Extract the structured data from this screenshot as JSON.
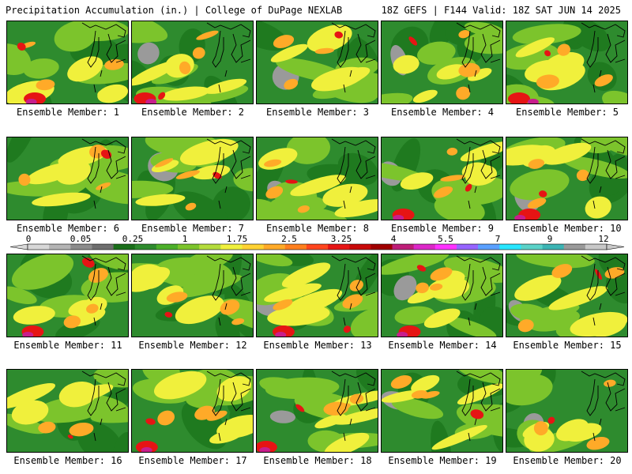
{
  "header": {
    "title": "Precipitation Accumulation (in.) | College of DuPage NEXLAB",
    "run_info": "18Z GEFS | F144 Valid: 18Z SAT JUN 14 2025"
  },
  "colorbar": {
    "labels": [
      "0",
      "0.05",
      "0.25",
      "1",
      "1.75",
      "2.5",
      "3.25",
      "4",
      "5.5",
      "7",
      "9",
      "12"
    ],
    "colors": [
      "#d8d8d8",
      "#b4b4b4",
      "#8c8c8c",
      "#6e6e6e",
      "#1a6e1a",
      "#2e8b2e",
      "#4caf2a",
      "#7cc42c",
      "#b4dc3c",
      "#f0f03c",
      "#ffd232",
      "#ffaa28",
      "#ff7f1e",
      "#ff461e",
      "#e61414",
      "#c80a0a",
      "#a00000",
      "#be1e78",
      "#dc28c8",
      "#ff32ff",
      "#9664ff",
      "#5aa0ff",
      "#28e6ff",
      "#5ad2c8",
      "#3cb4b4",
      "#9a9a9a",
      "#c8c8c8"
    ]
  },
  "palette": {
    "green_dark": "#1f7a1f",
    "green": "#2e8b2e",
    "green_light": "#7cc42c",
    "yellow": "#f0f03c",
    "orange": "#ffaa28",
    "red": "#e61414",
    "magenta": "#c81e8c",
    "cyan": "#28e6ff",
    "gray": "#9a9a9a",
    "coast": "#000000"
  },
  "members": [
    {
      "caption": "Ensemble Member: 1"
    },
    {
      "caption": "Ensemble Member: 2"
    },
    {
      "caption": "Ensemble Member: 3"
    },
    {
      "caption": "Ensemble Member: 4"
    },
    {
      "caption": "Ensemble Member: 5"
    },
    {
      "caption": "Ensemble Member: 6"
    },
    {
      "caption": "Ensemble Member: 7"
    },
    {
      "caption": "Ensemble Member: 8"
    },
    {
      "caption": "Ensemble Member: 9"
    },
    {
      "caption": "Ensemble Member: 10"
    },
    {
      "caption": "Ensemble Member: 11"
    },
    {
      "caption": "Ensemble Member: 12"
    },
    {
      "caption": "Ensemble Member: 13"
    },
    {
      "caption": "Ensemble Member: 14"
    },
    {
      "caption": "Ensemble Member: 15"
    },
    {
      "caption": "Ensemble Member: 16"
    },
    {
      "caption": "Ensemble Member: 17"
    },
    {
      "caption": "Ensemble Member: 18"
    },
    {
      "caption": "Ensemble Member: 19"
    },
    {
      "caption": "Ensemble Member: 20"
    }
  ]
}
